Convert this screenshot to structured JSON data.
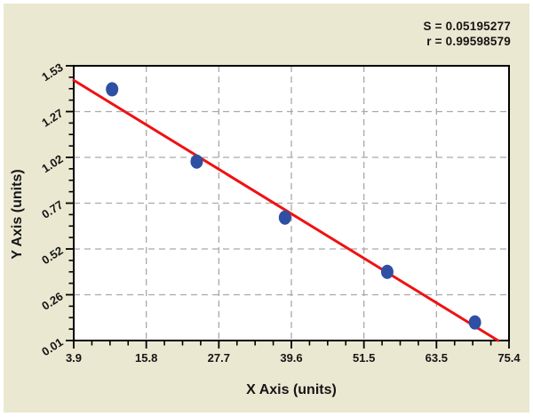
{
  "chart_data": {
    "type": "scatter",
    "title": "",
    "xlabel": "X Axis (units)",
    "ylabel": "Y Axis (units)",
    "xlim": [
      3.9,
      75.4
    ],
    "ylim": [
      0.01,
      1.53
    ],
    "x_ticks": [
      "3.9",
      "15.8",
      "27.7",
      "39.6",
      "51.5",
      "63.5",
      "75.4"
    ],
    "y_ticks": [
      "0.01",
      "0.26",
      "0.52",
      "0.77",
      "1.02",
      "1.27",
      "1.53"
    ],
    "minor_ticks_per_interval": 3,
    "grid": "dashed",
    "legend": "none",
    "points": [
      {
        "x": 10.2,
        "y": 1.4
      },
      {
        "x": 24.1,
        "y": 1.0
      },
      {
        "x": 38.6,
        "y": 0.69
      },
      {
        "x": 55.4,
        "y": 0.39
      },
      {
        "x": 69.8,
        "y": 0.11
      }
    ],
    "trend_line": {
      "x1": 3.9,
      "y1": 1.45,
      "x2": 73.6,
      "y2": 0.01
    },
    "stats": {
      "s_line": "S = 0.05195277",
      "r_line": "r = 0.99598579"
    },
    "colors": {
      "background": "#EBE8D2",
      "plot_background": "#FFFFFF",
      "frame": "#000000",
      "grid": "#A9A9A9",
      "point": "#2E4FA3",
      "trend_line": "#F01111",
      "text": "#151515"
    }
  }
}
